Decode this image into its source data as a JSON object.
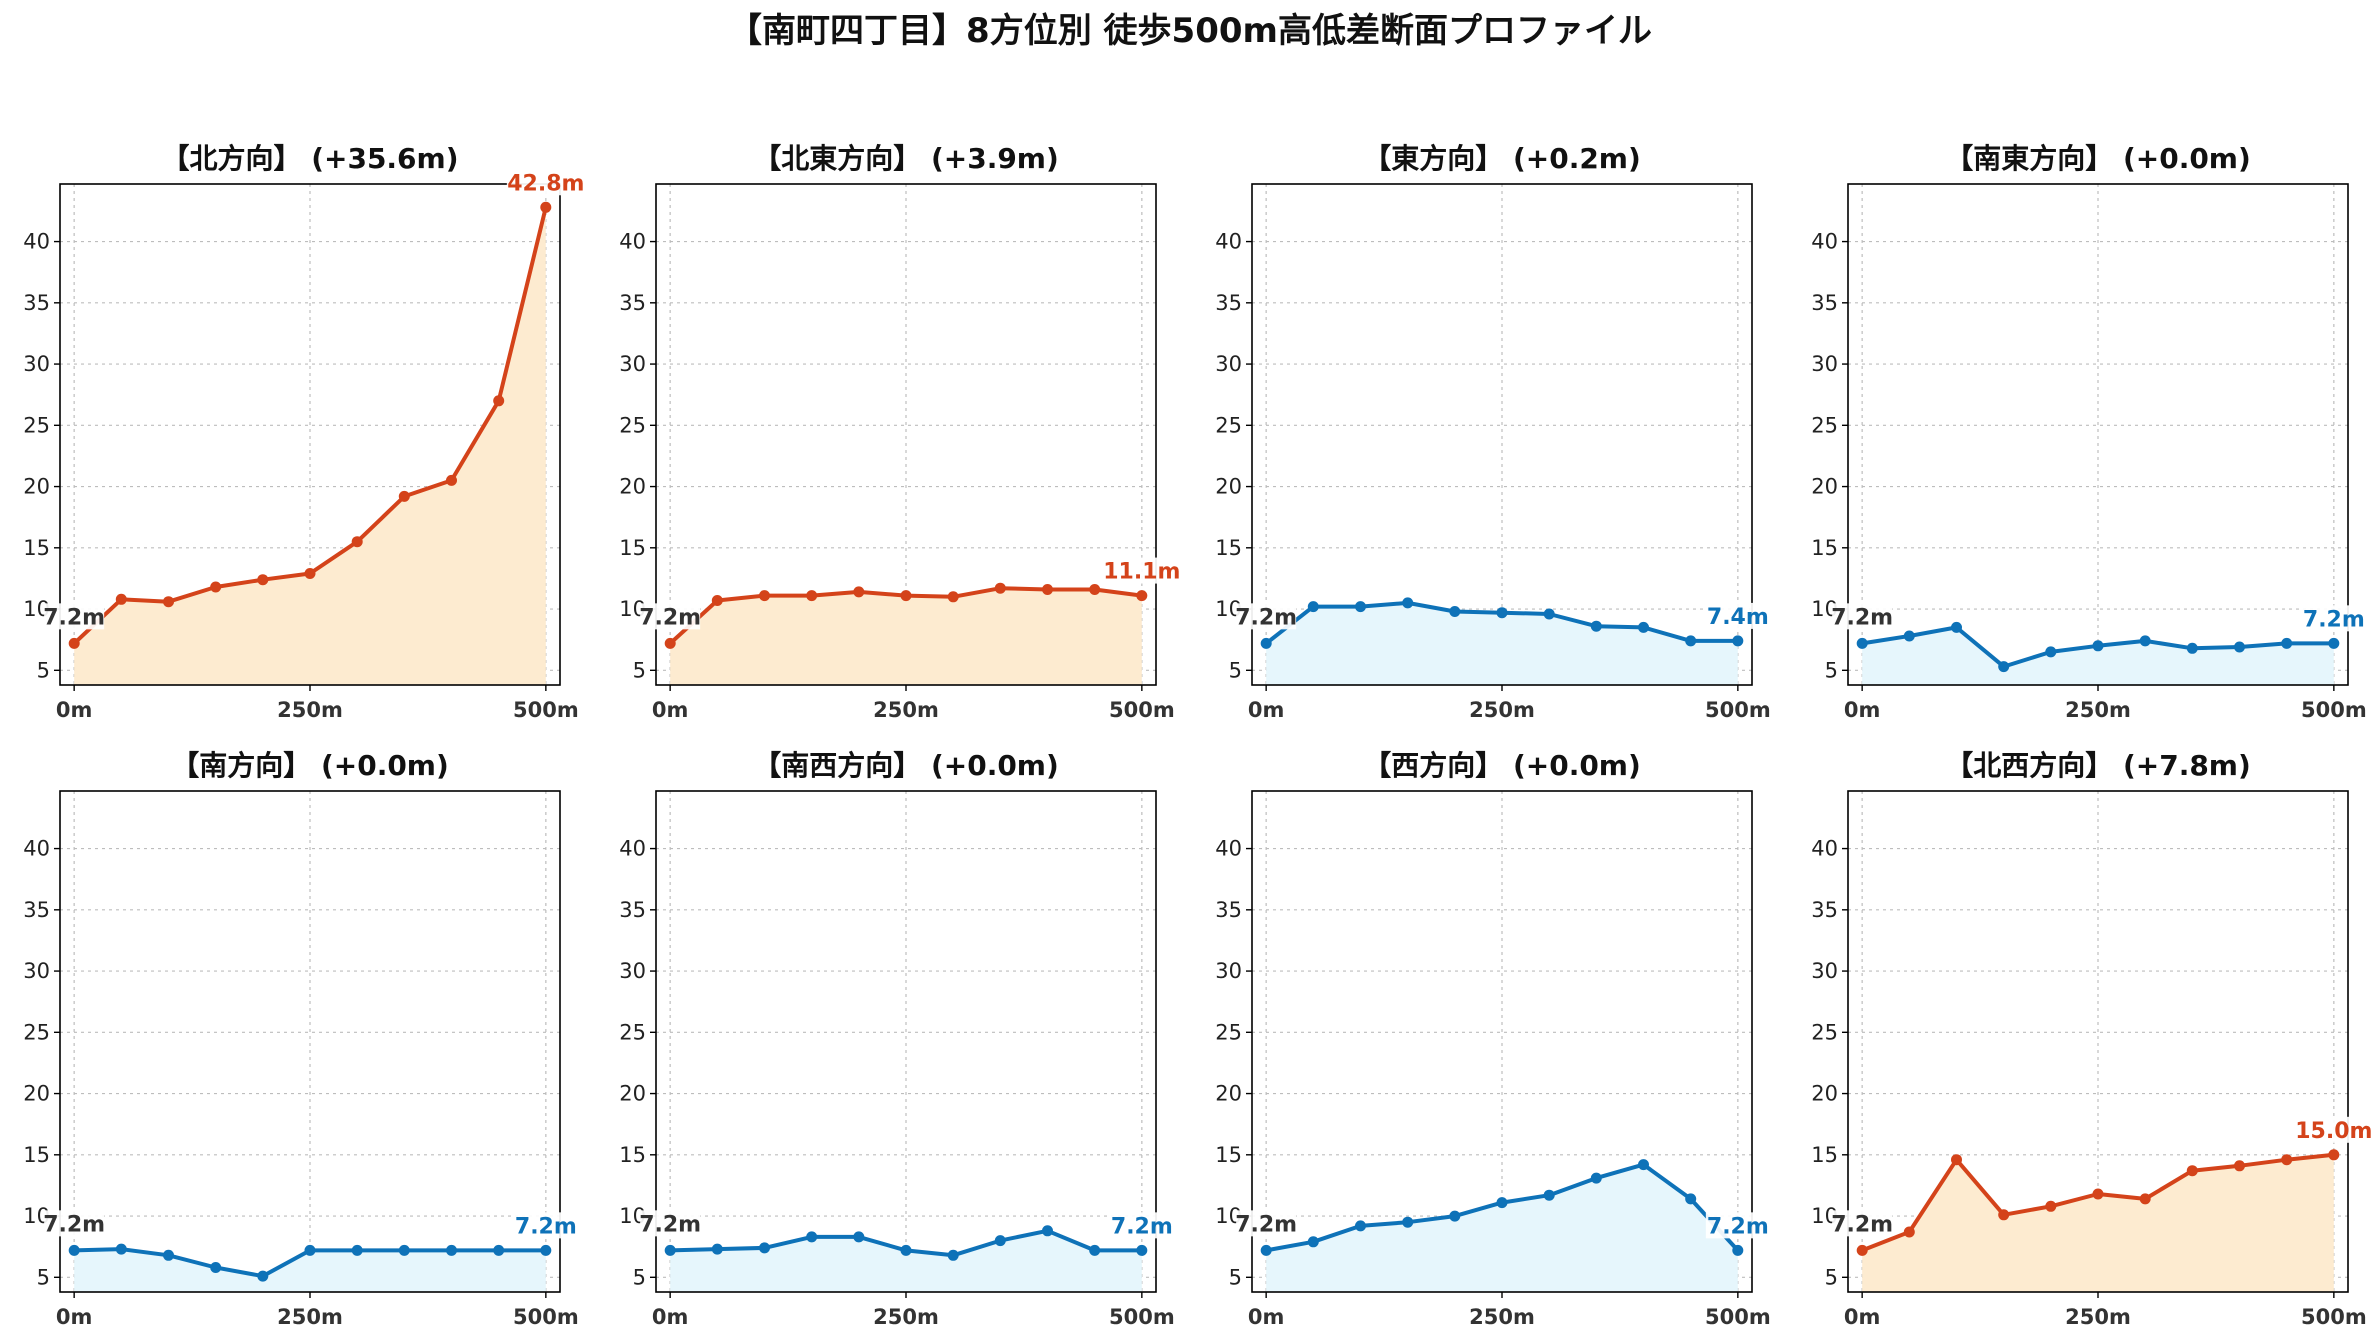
{
  "title": "【南町四丁目】8方位別 徒歩500m高低差断面プロファイル",
  "colors": {
    "up_line": "#d4431a",
    "up_fill": "#fdebd0",
    "down_line": "#0e72b8",
    "down_fill": "#e6f6fc",
    "start_label": "#333333"
  },
  "chart_data": [
    {
      "type": "area",
      "title": "【北方向】 (+35.6m)",
      "trend": "up",
      "x": [
        0,
        50,
        100,
        150,
        200,
        250,
        300,
        350,
        400,
        450,
        500
      ],
      "y": [
        7.2,
        10.8,
        10.6,
        11.8,
        12.4,
        12.9,
        15.5,
        19.2,
        20.5,
        27.0,
        42.8
      ],
      "start_label": "7.2m",
      "end_label": "42.8m",
      "xticks": [
        0,
        250,
        500
      ],
      "xtick_labels": [
        "0m",
        "250m",
        "500m"
      ],
      "yticks": [
        5,
        10,
        15,
        20,
        25,
        30,
        35,
        40
      ],
      "xlim": [
        -15,
        515
      ],
      "ylim": [
        3.8,
        44.7
      ],
      "grid": true
    },
    {
      "type": "area",
      "title": "【北東方向】 (+3.9m)",
      "trend": "up",
      "x": [
        0,
        50,
        100,
        150,
        200,
        250,
        300,
        350,
        400,
        450,
        500
      ],
      "y": [
        7.2,
        10.7,
        11.1,
        11.1,
        11.4,
        11.1,
        11.0,
        11.7,
        11.6,
        11.6,
        11.1
      ],
      "start_label": "7.2m",
      "end_label": "11.1m",
      "xticks": [
        0,
        250,
        500
      ],
      "xtick_labels": [
        "0m",
        "250m",
        "500m"
      ],
      "yticks": [
        5,
        10,
        15,
        20,
        25,
        30,
        35,
        40
      ],
      "xlim": [
        -15,
        515
      ],
      "ylim": [
        3.8,
        44.7
      ],
      "grid": true
    },
    {
      "type": "area",
      "title": "【東方向】 (+0.2m)",
      "trend": "down",
      "x": [
        0,
        50,
        100,
        150,
        200,
        250,
        300,
        350,
        400,
        450,
        500
      ],
      "y": [
        7.2,
        10.2,
        10.2,
        10.5,
        9.8,
        9.7,
        9.6,
        8.6,
        8.5,
        7.4,
        7.4
      ],
      "start_label": "7.2m",
      "end_label": "7.4m",
      "xticks": [
        0,
        250,
        500
      ],
      "xtick_labels": [
        "0m",
        "250m",
        "500m"
      ],
      "yticks": [
        5,
        10,
        15,
        20,
        25,
        30,
        35,
        40
      ],
      "xlim": [
        -15,
        515
      ],
      "ylim": [
        3.8,
        44.7
      ],
      "grid": true
    },
    {
      "type": "area",
      "title": "【南東方向】 (+0.0m)",
      "trend": "down",
      "x": [
        0,
        50,
        100,
        150,
        200,
        250,
        300,
        350,
        400,
        450,
        500
      ],
      "y": [
        7.2,
        7.8,
        8.5,
        5.3,
        6.5,
        7.0,
        7.4,
        6.8,
        6.9,
        7.2,
        7.2
      ],
      "start_label": "7.2m",
      "end_label": "7.2m",
      "xticks": [
        0,
        250,
        500
      ],
      "xtick_labels": [
        "0m",
        "250m",
        "500m"
      ],
      "yticks": [
        5,
        10,
        15,
        20,
        25,
        30,
        35,
        40
      ],
      "xlim": [
        -15,
        515
      ],
      "ylim": [
        3.8,
        44.7
      ],
      "grid": true
    },
    {
      "type": "area",
      "title": "【南方向】 (+0.0m)",
      "trend": "down",
      "x": [
        0,
        50,
        100,
        150,
        200,
        250,
        300,
        350,
        400,
        450,
        500
      ],
      "y": [
        7.2,
        7.3,
        6.8,
        5.8,
        5.1,
        7.2,
        7.2,
        7.2,
        7.2,
        7.2,
        7.2
      ],
      "start_label": "7.2m",
      "end_label": "7.2m",
      "xticks": [
        0,
        250,
        500
      ],
      "xtick_labels": [
        "0m",
        "250m",
        "500m"
      ],
      "yticks": [
        5,
        10,
        15,
        20,
        25,
        30,
        35,
        40
      ],
      "xlim": [
        -15,
        515
      ],
      "ylim": [
        3.8,
        44.7
      ],
      "grid": true
    },
    {
      "type": "area",
      "title": "【南西方向】 (+0.0m)",
      "trend": "down",
      "x": [
        0,
        50,
        100,
        150,
        200,
        250,
        300,
        350,
        400,
        450,
        500
      ],
      "y": [
        7.2,
        7.3,
        7.4,
        8.3,
        8.3,
        7.2,
        6.8,
        8.0,
        8.8,
        7.2,
        7.2
      ],
      "start_label": "7.2m",
      "end_label": "7.2m",
      "xticks": [
        0,
        250,
        500
      ],
      "xtick_labels": [
        "0m",
        "250m",
        "500m"
      ],
      "yticks": [
        5,
        10,
        15,
        20,
        25,
        30,
        35,
        40
      ],
      "xlim": [
        -15,
        515
      ],
      "ylim": [
        3.8,
        44.7
      ],
      "grid": true
    },
    {
      "type": "area",
      "title": "【西方向】 (+0.0m)",
      "trend": "down",
      "x": [
        0,
        50,
        100,
        150,
        200,
        250,
        300,
        350,
        400,
        450,
        500
      ],
      "y": [
        7.2,
        7.9,
        9.2,
        9.5,
        10.0,
        11.1,
        11.7,
        13.1,
        14.2,
        11.4,
        7.2
      ],
      "start_label": "7.2m",
      "end_label": "7.2m",
      "xticks": [
        0,
        250,
        500
      ],
      "xtick_labels": [
        "0m",
        "250m",
        "500m"
      ],
      "yticks": [
        5,
        10,
        15,
        20,
        25,
        30,
        35,
        40
      ],
      "xlim": [
        -15,
        515
      ],
      "ylim": [
        3.8,
        44.7
      ],
      "grid": true
    },
    {
      "type": "area",
      "title": "【北西方向】 (+7.8m)",
      "trend": "up",
      "x": [
        0,
        50,
        100,
        150,
        200,
        250,
        300,
        350,
        400,
        450,
        500
      ],
      "y": [
        7.2,
        8.7,
        14.6,
        10.1,
        10.8,
        11.8,
        11.4,
        13.7,
        14.1,
        14.6,
        15.0
      ],
      "start_label": "7.2m",
      "end_label": "15.0m",
      "xticks": [
        0,
        250,
        500
      ],
      "xtick_labels": [
        "0m",
        "250m",
        "500m"
      ],
      "yticks": [
        5,
        10,
        15,
        20,
        25,
        30,
        35,
        40
      ],
      "xlim": [
        -15,
        515
      ],
      "ylim": [
        3.8,
        44.7
      ],
      "grid": true
    }
  ]
}
